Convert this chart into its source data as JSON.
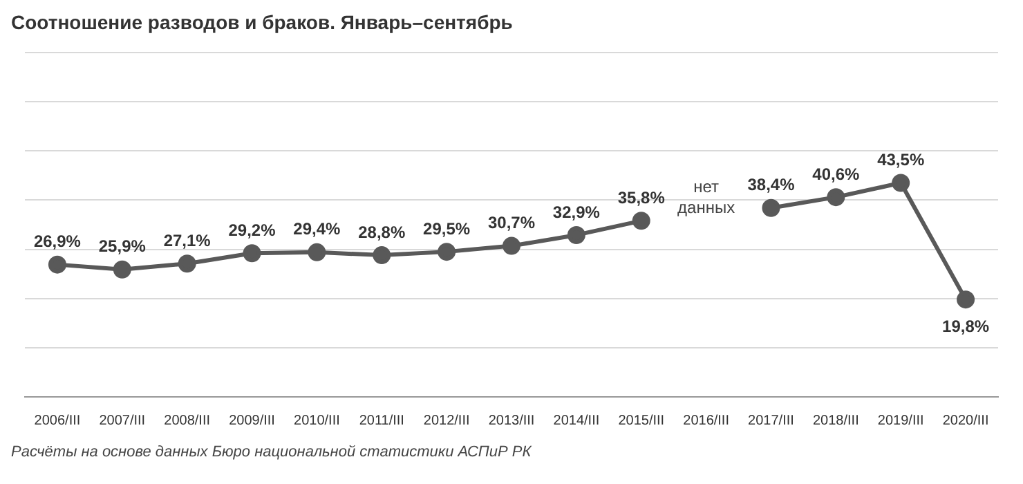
{
  "chart_data": {
    "type": "line",
    "title": "Соотношение разводов и браков. Январь–сентябрь",
    "categories": [
      "2006/III",
      "2007/III",
      "2008/III",
      "2009/III",
      "2010/III",
      "2011/III",
      "2012/III",
      "2013/III",
      "2014/III",
      "2015/III",
      "2016/III",
      "2017/III",
      "2018/III",
      "2019/III",
      "2020/III"
    ],
    "series": [
      {
        "color": "#595959",
        "values": [
          26.9,
          25.9,
          27.1,
          29.2,
          29.4,
          28.8,
          29.5,
          30.7,
          32.9,
          35.8,
          null,
          38.4,
          40.6,
          43.5,
          19.8
        ],
        "value_labels": [
          "26,9%",
          "25,9%",
          "27,1%",
          "29,2%",
          "29,4%",
          "28,8%",
          "29,5%",
          "30,7%",
          "32,9%",
          "35,8%",
          null,
          "38,4%",
          "40,6%",
          "43,5%",
          "19,8%"
        ]
      }
    ],
    "ylim": [
      0,
      70
    ],
    "yticks": [
      {
        "value": 0,
        "label": null
      },
      {
        "value": 10,
        "label": null
      },
      {
        "value": 20,
        "label": null
      },
      {
        "value": 30,
        "label": null
      },
      {
        "value": 40,
        "label": null
      },
      {
        "value": 50,
        "label": null
      },
      {
        "value": 60,
        "label": null
      },
      {
        "value": 70,
        "label": null
      }
    ],
    "tick_labels": "x",
    "grid": "y",
    "marker": "circle",
    "line_style": "solid",
    "legend": false,
    "annotations": [
      "нет\nданных",
      "Расчёты на основе данных Бюро национальной статистики АСПиР РК"
    ]
  }
}
